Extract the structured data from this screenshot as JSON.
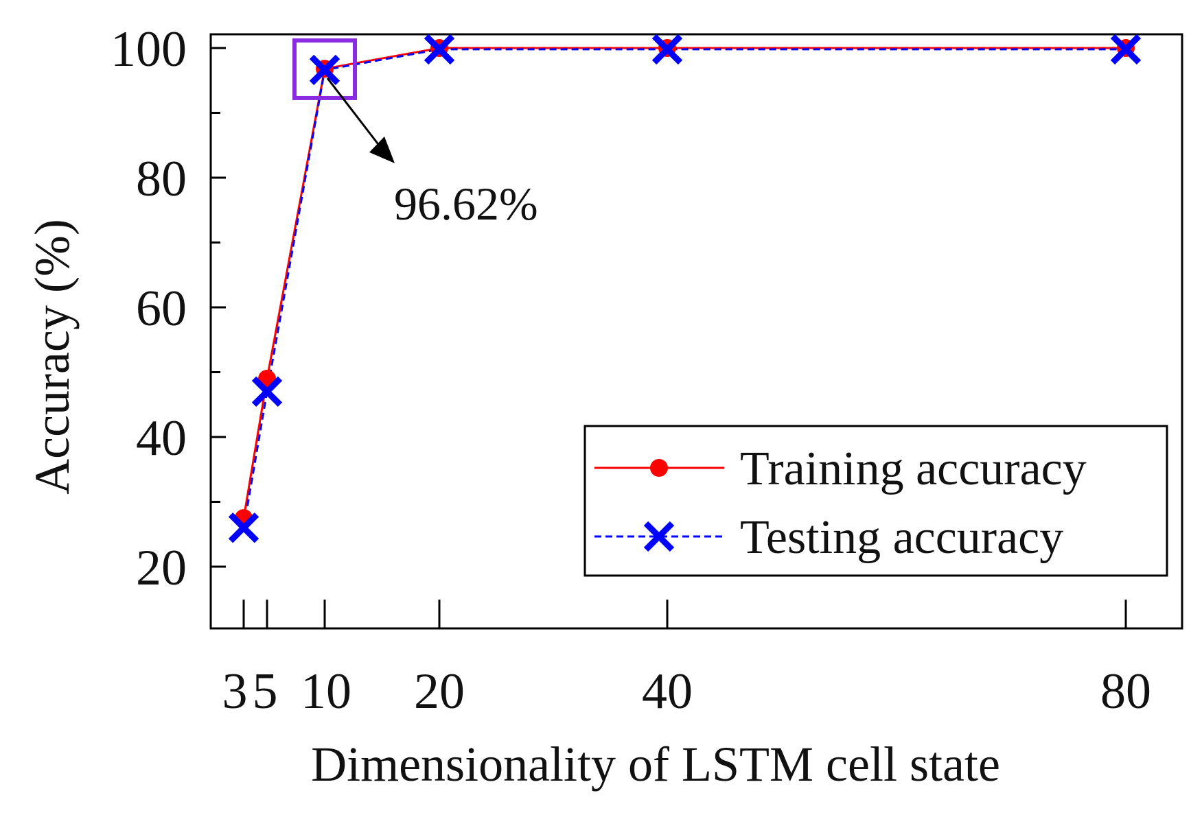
{
  "chart_data": {
    "type": "line",
    "title": "",
    "xlabel": "Dimensionality of  LSTM cell state",
    "ylabel": "Accuracy (%)",
    "x": [
      3,
      5,
      10,
      20,
      40,
      80
    ],
    "x_tick_labels": [
      "3",
      "5",
      "10",
      "20",
      "40",
      "80"
    ],
    "xlim": [
      0,
      85
    ],
    "ylim": [
      10,
      102
    ],
    "y_ticks": [
      20,
      40,
      60,
      80,
      100
    ],
    "y_minor_ticks": [
      30,
      50,
      70,
      90
    ],
    "grid": false,
    "legend_position": "bottom-right",
    "series": [
      {
        "name": "Training accuracy",
        "values": [
          27.5,
          49,
          96.8,
          100,
          100,
          100
        ],
        "color": "#ff0000",
        "marker": "circle",
        "line": "solid"
      },
      {
        "name": "Testing accuracy",
        "values": [
          26,
          47,
          96.62,
          99.8,
          99.8,
          99.8
        ],
        "color": "#0000ff",
        "marker": "x",
        "line": "dashed"
      }
    ],
    "annotation": {
      "text": "96.62%",
      "x": 10,
      "y": 96.62,
      "highlight_color": "#8a2be2"
    }
  }
}
